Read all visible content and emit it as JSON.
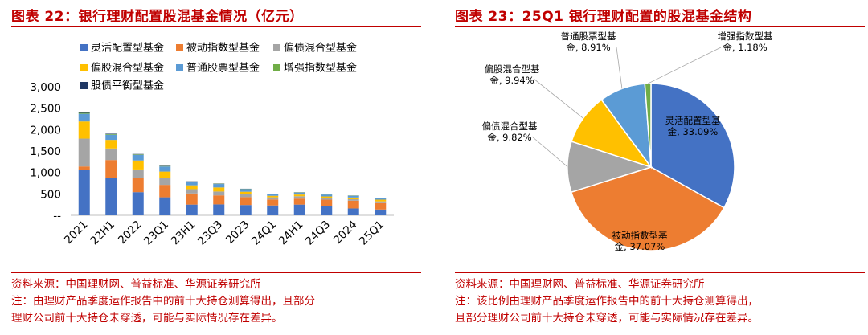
{
  "charts": {
    "left": {
      "title": "图表 22：银行理财配置股混基金情况（亿元）",
      "source": "资料来源：中国理财网、普益标准、华源证券研究所",
      "note_line1": "注：由理财产品季度运作报告中的前十大持仓测算得出，且部分",
      "note_line2": "理财公司前十大持仓未穿透，可能与实际情况存在差异。"
    },
    "right": {
      "title": "图表 23：25Q1 银行理财配置的股混基金结构",
      "source": "资料来源：中国理财网、普益标准、华源证券研究所",
      "note_line1": "注：该比例由理财产品季度运作报告中的前十大持仓测算得出，",
      "note_line2": "且部分理财公司前十大持仓未穿透，可能与实际情况存在差异。"
    }
  },
  "chart_data": [
    {
      "type": "bar",
      "stacked": true,
      "title": "图表 22：银行理财配置股混基金情况（亿元）",
      "categories": [
        "2021",
        "22H1",
        "2022",
        "23Q1",
        "23H1",
        "23Q3",
        "2023",
        "24Q1",
        "24H1",
        "24Q3",
        "2024",
        "25Q1"
      ],
      "series": [
        {
          "name": "灵活配置型基金",
          "color": "#4472c4",
          "values": [
            1060,
            870,
            540,
            420,
            250,
            255,
            240,
            230,
            250,
            215,
            160,
            135
          ]
        },
        {
          "name": "被动指数型基金",
          "color": "#ed7d31",
          "values": [
            80,
            420,
            330,
            290,
            260,
            210,
            185,
            140,
            140,
            150,
            180,
            150
          ]
        },
        {
          "name": "偏债混合型基金",
          "color": "#a5a5a5",
          "values": [
            650,
            270,
            200,
            160,
            100,
            90,
            70,
            50,
            55,
            40,
            35,
            40
          ]
        },
        {
          "name": "偏股混合型基金",
          "color": "#ffc000",
          "values": [
            400,
            200,
            210,
            150,
            90,
            95,
            55,
            35,
            40,
            35,
            40,
            40
          ]
        },
        {
          "name": "普通股票型基金",
          "color": "#5b9bd5",
          "values": [
            180,
            120,
            130,
            120,
            80,
            80,
            60,
            40,
            45,
            45,
            40,
            35
          ]
        },
        {
          "name": "增强指数型基金",
          "color": "#70ad47",
          "values": [
            20,
            15,
            12,
            10,
            8,
            8,
            6,
            5,
            5,
            5,
            5,
            5
          ]
        },
        {
          "name": "股债平衡型基金",
          "color": "#203864",
          "values": [
            10,
            10,
            8,
            8,
            5,
            5,
            4,
            4,
            4,
            3,
            3,
            3
          ]
        }
      ],
      "ylim": [
        0,
        3000
      ],
      "yticks": [
        "3,000",
        "2,500",
        "2,000",
        "1,500",
        "1,000",
        "500",
        "--"
      ],
      "ytick_values": [
        3000,
        2500,
        2000,
        1500,
        1000,
        500,
        0
      ],
      "legend_position": "top",
      "grid": false
    },
    {
      "type": "pie",
      "title": "图表 23：25Q1 银行理财配置的股混基金结构",
      "slices": [
        {
          "name": "灵活配置型基金",
          "label_line1": "灵活配置型基",
          "label_line2": "金, 33.09%",
          "value": 33.09,
          "color": "#4472c4"
        },
        {
          "name": "被动指数型基金",
          "label_line1": "被动指数型基",
          "label_line2": "金, 37.07%",
          "value": 37.07,
          "color": "#ed7d31"
        },
        {
          "name": "偏债混合型基金",
          "label_line1": "偏债混合型基",
          "label_line2": "金, 9.82%",
          "value": 9.82,
          "color": "#a5a5a5"
        },
        {
          "name": "偏股混合型基金",
          "label_line1": "偏股混合型基",
          "label_line2": "金, 9.94%",
          "value": 9.94,
          "color": "#ffc000"
        },
        {
          "name": "普通股票型基金",
          "label_line1": "普通股票型基",
          "label_line2": "金, 8.91%",
          "value": 8.91,
          "color": "#5b9bd5"
        },
        {
          "name": "增强指数型基金",
          "label_line1": "增强指数型基",
          "label_line2": "金, 1.18%",
          "value": 1.18,
          "color": "#70ad47"
        }
      ]
    }
  ]
}
